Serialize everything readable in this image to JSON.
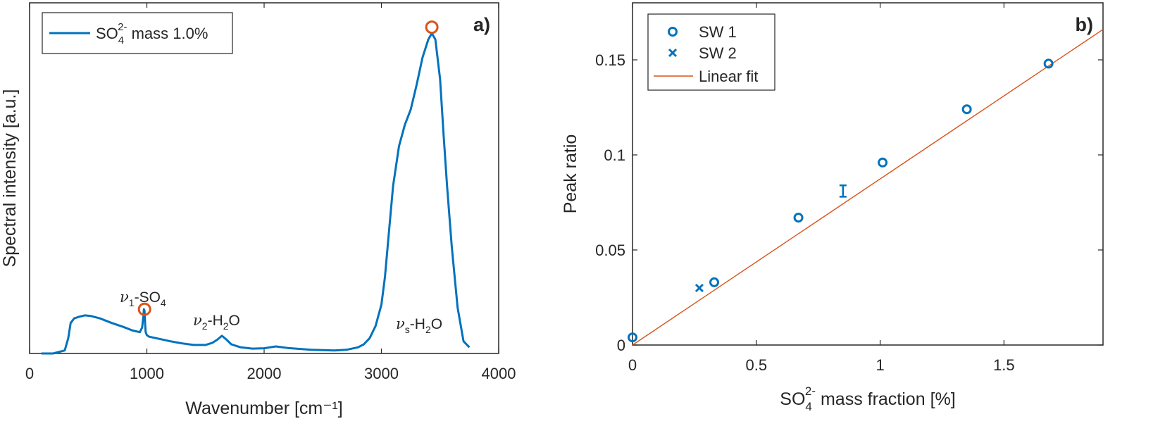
{
  "chart_data": [
    {
      "panel": "a)",
      "type": "line",
      "xlabel": "Wavenumber [cm⁻¹]",
      "ylabel": "Spectral intensity [a.u.]",
      "xlim": [
        0,
        4000
      ],
      "ylim": [
        0,
        1.15
      ],
      "xticks": [
        "0",
        "1000",
        "2000",
        "3000",
        "4000"
      ],
      "yticks": [],
      "grid": false,
      "legend": {
        "position": "top-left",
        "entries": [
          "SO₄²⁻ mass 1.0%"
        ]
      },
      "colors": {
        "series": "#0072BD",
        "marker": "#D95319"
      },
      "series": [
        {
          "name": "SO₄²⁻ mass 1.0%",
          "x": [
            100,
            200,
            300,
            330,
            350,
            380,
            420,
            470,
            520,
            600,
            700,
            800,
            880,
            940,
            960,
            970,
            975,
            980,
            985,
            990,
            1000,
            1020,
            1080,
            1200,
            1300,
            1400,
            1500,
            1560,
            1600,
            1640,
            1680,
            1720,
            1800,
            1900,
            2000,
            2100,
            2200,
            2400,
            2600,
            2700,
            2800,
            2850,
            2900,
            2950,
            3000,
            3030,
            3060,
            3100,
            3150,
            3200,
            3250,
            3300,
            3350,
            3400,
            3430,
            3460,
            3500,
            3530,
            3560,
            3600,
            3650,
            3700,
            3750
          ],
          "y": [
            0.0,
            0.0,
            0.01,
            0.05,
            0.1,
            0.115,
            0.12,
            0.125,
            0.123,
            0.115,
            0.1,
            0.087,
            0.075,
            0.07,
            0.085,
            0.12,
            0.145,
            0.14,
            0.1,
            0.07,
            0.06,
            0.055,
            0.05,
            0.04,
            0.033,
            0.028,
            0.028,
            0.035,
            0.045,
            0.058,
            0.045,
            0.03,
            0.02,
            0.016,
            0.017,
            0.023,
            0.018,
            0.012,
            0.01,
            0.012,
            0.02,
            0.03,
            0.05,
            0.09,
            0.16,
            0.25,
            0.38,
            0.55,
            0.68,
            0.75,
            0.8,
            0.88,
            0.97,
            1.03,
            1.05,
            1.03,
            0.9,
            0.72,
            0.55,
            0.35,
            0.15,
            0.04,
            0.02
          ]
        }
      ],
      "peak_markers": [
        {
          "x": 980,
          "y": 0.145
        },
        {
          "x": 3430,
          "y": 1.07
        }
      ],
      "annotations": [
        {
          "symbol": "ν",
          "sub": "1",
          "text": "-SO",
          "sub2": "4"
        },
        {
          "symbol": "ν",
          "sub": "2",
          "text": "-H",
          "sub2": "2",
          "tail": "O"
        },
        {
          "symbol": "ν",
          "sub": "s",
          "text": "-H",
          "sub2": "2",
          "tail": "O"
        }
      ]
    },
    {
      "panel": "b)",
      "type": "scatter",
      "xlabel": "SO₄²⁻ mass fraction [%]",
      "ylabel": "Peak ratio",
      "xlim": [
        0,
        1.9
      ],
      "ylim": [
        0,
        0.18
      ],
      "xticks": [
        "0",
        "0.5",
        "1",
        "1.5"
      ],
      "yticks": [
        "0",
        "0.05",
        "0.1",
        "0.15"
      ],
      "grid": false,
      "legend": {
        "position": "top-left",
        "entries": [
          "SW 1",
          "SW 2",
          "Linear fit"
        ]
      },
      "colors": {
        "sw1": "#0072BD",
        "sw2": "#0072BD",
        "fit": "#D95319"
      },
      "series": [
        {
          "name": "SW 1",
          "marker": "o",
          "x": [
            0.0,
            0.33,
            0.67,
            1.01,
            1.35,
            1.68
          ],
          "y": [
            0.004,
            0.033,
            0.067,
            0.096,
            0.124,
            0.148
          ]
        },
        {
          "name": "SW 2",
          "marker": "x",
          "x": [
            0.27,
            0.85
          ],
          "y": [
            0.03,
            0.081
          ],
          "yerr": [
            0.0,
            0.003
          ]
        },
        {
          "name": "Linear fit",
          "marker": "line",
          "x": [
            0.0,
            1.9
          ],
          "y": [
            0.0,
            0.166
          ]
        }
      ]
    }
  ]
}
